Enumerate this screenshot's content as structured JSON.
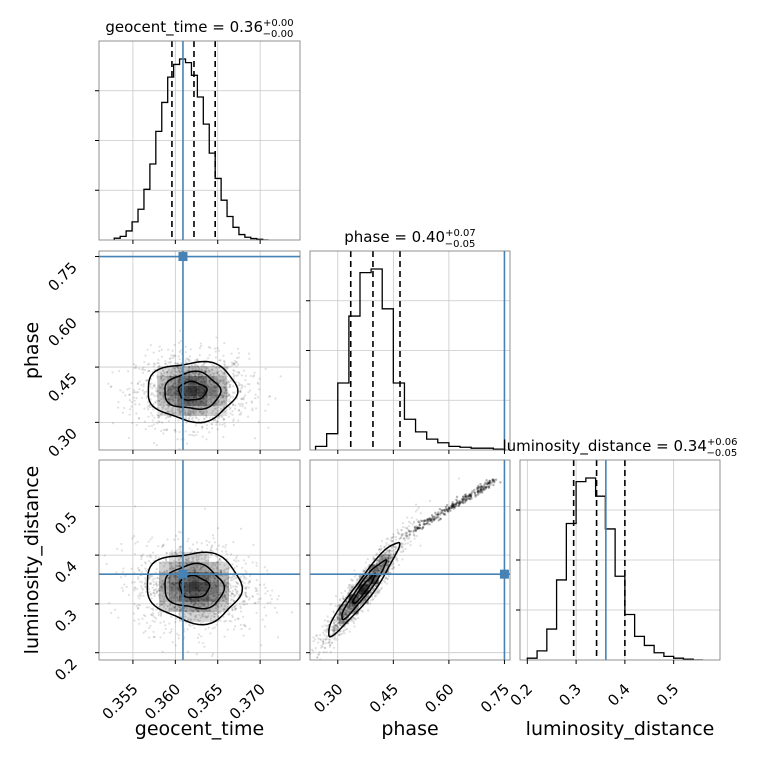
{
  "chart_data": {
    "type": "corner",
    "parameters": [
      "geocent_time",
      "phase",
      "luminosity_distance"
    ],
    "titles": [
      {
        "param": "geocent_time",
        "text": "geocent_time = 0.36",
        "sup": "+0.00",
        "sub": "−0.00"
      },
      {
        "param": "phase",
        "text": "phase = 0.40",
        "sup": "+0.07",
        "sub": "−0.05"
      },
      {
        "param": "luminosity_distance",
        "text": "luminosity_distance = 0.34",
        "sup": "+0.06",
        "sub": "−0.05"
      }
    ],
    "axis_ranges": {
      "geocent_time": [
        0.351,
        0.3747
      ],
      "phase": [
        0.225,
        0.765
      ],
      "luminosity_distance": [
        0.185,
        0.595
      ]
    },
    "ticks": {
      "geocent_time": [
        0.355,
        0.36,
        0.365,
        0.37
      ],
      "geocent_time_labels": [
        "0.355",
        "0.360",
        "0.365",
        "0.370"
      ],
      "phase": [
        0.3,
        0.45,
        0.6,
        0.75
      ],
      "phase_labels": [
        "0.30",
        "0.45",
        "0.60",
        "0.75"
      ],
      "luminosity_distance": [
        0.2,
        0.3,
        0.4,
        0.5
      ],
      "luminosity_distance_labels": [
        "0.2",
        "0.3",
        "0.4",
        "0.5"
      ]
    },
    "truths": {
      "geocent_time": 0.3609,
      "phase": 0.75,
      "luminosity_distance": 0.361
    },
    "quantiles": {
      "geocent_time": [
        0.3596,
        0.3622,
        0.3647
      ],
      "phase": [
        0.335,
        0.395,
        0.468
      ],
      "luminosity_distance": [
        0.295,
        0.342,
        0.4
      ]
    },
    "histograms": {
      "geocent_time": {
        "edges": [
          0.3528,
          0.3535,
          0.3542,
          0.3549,
          0.3556,
          0.3563,
          0.357,
          0.3577,
          0.3584,
          0.3591,
          0.3598,
          0.3605,
          0.3612,
          0.3619,
          0.3626,
          0.3633,
          0.364,
          0.3647,
          0.3654,
          0.3661,
          0.3668,
          0.3675,
          0.3682,
          0.3689,
          0.3696,
          0.3703,
          0.371
        ],
        "counts": [
          0.01,
          0.02,
          0.05,
          0.1,
          0.17,
          0.28,
          0.42,
          0.6,
          0.76,
          0.9,
          0.97,
          1.0,
          0.98,
          0.91,
          0.79,
          0.64,
          0.48,
          0.34,
          0.22,
          0.13,
          0.07,
          0.03,
          0.015,
          0.008,
          0.004,
          0.0
        ]
      },
      "phase": {
        "edges": [
          0.24,
          0.27,
          0.3,
          0.33,
          0.36,
          0.39,
          0.42,
          0.45,
          0.48,
          0.51,
          0.54,
          0.57,
          0.6,
          0.63,
          0.66,
          0.69,
          0.72,
          0.75
        ],
        "counts": [
          0.02,
          0.09,
          0.37,
          0.74,
          0.98,
          1.0,
          0.78,
          0.37,
          0.17,
          0.1,
          0.06,
          0.04,
          0.02,
          0.015,
          0.01,
          0.01,
          0.005
        ]
      },
      "luminosity_distance": {
        "edges": [
          0.2,
          0.22,
          0.24,
          0.26,
          0.28,
          0.3,
          0.32,
          0.34,
          0.36,
          0.38,
          0.4,
          0.42,
          0.44,
          0.46,
          0.48,
          0.5,
          0.52,
          0.54,
          0.56
        ],
        "counts": [
          0.01,
          0.05,
          0.17,
          0.44,
          0.75,
          0.98,
          1.0,
          0.9,
          0.72,
          0.46,
          0.25,
          0.13,
          0.08,
          0.04,
          0.02,
          0.01,
          0.005,
          0.0
        ]
      }
    },
    "density_2d": {
      "phase_vs_geocent_time": {
        "center": [
          0.362,
          0.385
        ],
        "sigma": [
          0.0033,
          0.05
        ],
        "corr": 0.0
      },
      "luminosity_distance_vs_geocent_time": {
        "center": [
          0.3622,
          0.335
        ],
        "sigma": [
          0.0035,
          0.045
        ],
        "corr": -0.05
      },
      "luminosity_distance_vs_phase": {
        "center": [
          0.37,
          0.33
        ],
        "sigma": [
          0.06,
          0.06
        ],
        "corr": 0.95,
        "tail_end": [
          0.73,
          0.555
        ]
      }
    },
    "contour_levels": 3,
    "grid": true,
    "colors": {
      "hist": "#000000",
      "truth": "#4682b4",
      "quantile": "#000000",
      "grid": "#c8c8c8",
      "density": "#000000"
    }
  }
}
